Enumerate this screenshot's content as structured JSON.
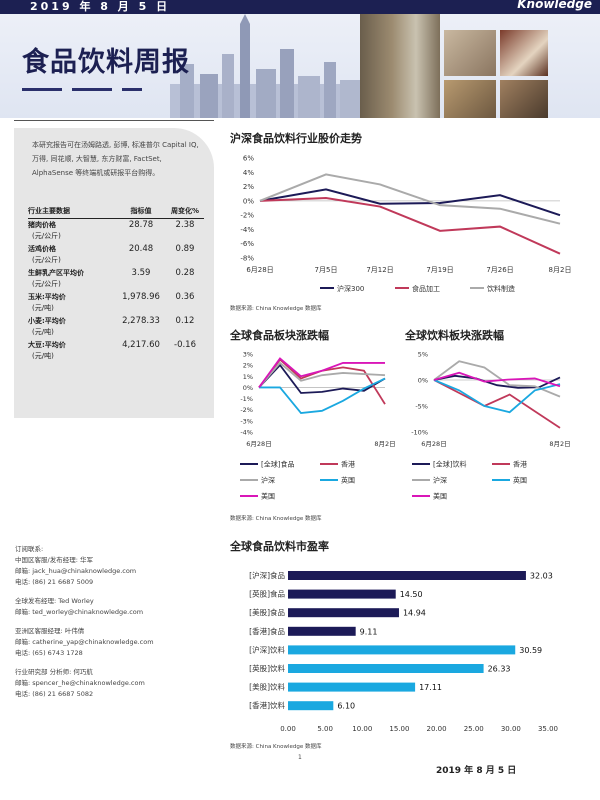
{
  "header": {
    "date": "2019 年 8 月 5 日",
    "brand": "Knowledge",
    "title": "食品饮料周报"
  },
  "sidebar": {
    "intro": "本研究报告可在汤姆路透, 彭博, 标准普尔 Capital IQ, 万得, 同花顺, 大智慧, 东方财富, FactSet, AlphaSense 等终端机或研报平台购得。",
    "table": {
      "headers": [
        "行业主要数据",
        "指标值",
        "周变化%"
      ],
      "rows": [
        {
          "name": "猪肉价格",
          "unit": "(元/公斤)",
          "value": "28.78",
          "change": "2.38"
        },
        {
          "name": "活鸡价格",
          "unit": "(元/公斤)",
          "value": "20.48",
          "change": "0.89"
        },
        {
          "name": "生鲜乳产区平均价",
          "unit": "(元/公斤)",
          "value": "3.59",
          "change": "0.28"
        },
        {
          "name": "玉米:平均价",
          "unit": "(元/吨)",
          "value": "1,978.96",
          "change": "0.36"
        },
        {
          "name": "小麦:平均价",
          "unit": "(元/吨)",
          "value": "2,278.33",
          "change": "0.12"
        },
        {
          "name": "大豆:平均价",
          "unit": "(元/吨)",
          "value": "4,217.60",
          "change": "-0.16"
        }
      ]
    }
  },
  "contacts": [
    {
      "title": "订阅联系:",
      "lines": [
        "中国区客服/发布经理: 华军",
        "邮箱: jack_hua@chinaknowledge.com",
        "电话: (86) 21 6687 5009"
      ]
    },
    {
      "title": "",
      "lines": [
        "全球发布经理: Ted Worley",
        "邮箱: ted_worley@chinaknowledge.com"
      ]
    },
    {
      "title": "",
      "lines": [
        "亚洲区客服经理: 叶伟倩",
        "邮箱: catherine_yap@chinaknowledge.com",
        "电话: (65) 6743 1728"
      ]
    },
    {
      "title": "",
      "lines": [
        "行业研究部 分析师: 何巧航",
        "邮箱: spencer_he@chinaknowledge.com",
        "电话: (86) 21 6687 5082"
      ]
    }
  ],
  "colors": {
    "navy": "#1c1a57",
    "crimson": "#c0395a",
    "gray": "#aaaaaa",
    "cyan": "#1aa8e0",
    "magenta": "#d916b8"
  },
  "chart_data": [
    {
      "type": "line",
      "title": "沪深食品饮料行业股价走势",
      "categories": [
        "6月28日",
        "7月5日",
        "7月12日",
        "7月19日",
        "7月26日",
        "8月2日"
      ],
      "x_positions": [
        0,
        1.1,
        2,
        3,
        4,
        5
      ],
      "ylim": [
        -8,
        6
      ],
      "yticks": [
        "6%",
        "4%",
        "2%",
        "0%",
        "-2%",
        "-4%",
        "-6%",
        "-8%"
      ],
      "series": [
        {
          "name": "沪深300",
          "color": "#1c1a57",
          "values": [
            0,
            1.6,
            -0.4,
            -0.3,
            0.8,
            -2
          ]
        },
        {
          "name": "食品加工",
          "color": "#c0395a",
          "values": [
            0,
            0.4,
            -0.8,
            -4.2,
            -3.6,
            -7.4
          ]
        },
        {
          "name": "饮料制造",
          "color": "#aaaaaa",
          "values": [
            0,
            3.7,
            2.3,
            -0.6,
            -1.1,
            -3.2
          ]
        }
      ],
      "source": "数据来源: China Knowledge 数据库"
    },
    {
      "type": "line",
      "title": "全球食品板块涨跌幅",
      "xlabels": [
        "6月28日",
        "8月2日"
      ],
      "ylim": [
        -4,
        3
      ],
      "yticks": [
        "3%",
        "2%",
        "1%",
        "0%",
        "-1%",
        "-2%",
        "-3%",
        "-4%"
      ],
      "series": [
        {
          "name": "[全球]食品",
          "color": "#1c1a57",
          "values": [
            0,
            2,
            -0.5,
            -0.4,
            -0.1,
            -0.3,
            0.8
          ]
        },
        {
          "name": "香港",
          "color": "#c0395a",
          "values": [
            0,
            2.5,
            0.8,
            1.5,
            1.8,
            1.5,
            -1.5
          ]
        },
        {
          "name": "沪深",
          "color": "#aaaaaa",
          "values": [
            0,
            2.2,
            0.6,
            1.1,
            1.3,
            1.2,
            1.1
          ]
        },
        {
          "name": "英国",
          "color": "#1aa8e0",
          "values": [
            0,
            0,
            -2.3,
            -2.1,
            -1.2,
            -0.1,
            0.8
          ]
        },
        {
          "name": "美国",
          "color": "#d916b8",
          "values": [
            0,
            2.6,
            1,
            1.5,
            2.2,
            2.2,
            2.2
          ]
        }
      ]
    },
    {
      "type": "line",
      "title": "全球饮料板块涨跌幅",
      "xlabels": [
        "6月28日",
        "8月2日"
      ],
      "ylim": [
        -10,
        5
      ],
      "yticks": [
        "5%",
        "0%",
        "-5%",
        "-10%"
      ],
      "series": [
        {
          "name": "[全球]饮料",
          "color": "#1c1a57",
          "values": [
            0,
            0.8,
            0.3,
            -1,
            -1.5,
            -1.4,
            0.5
          ]
        },
        {
          "name": "香港",
          "color": "#c0395a",
          "values": [
            0,
            -2.5,
            -5,
            -2.8,
            -6,
            -9.2
          ]
        },
        {
          "name": "沪深",
          "color": "#aaaaaa",
          "values": [
            0,
            3.6,
            2.4,
            -1,
            -1.2,
            -3.2
          ]
        },
        {
          "name": "英国",
          "color": "#1aa8e0",
          "values": [
            0,
            -2,
            -5,
            -6.2,
            -2,
            -0.8
          ]
        },
        {
          "name": "美国",
          "color": "#d916b8",
          "values": [
            0,
            1.4,
            -0.3,
            0.1,
            0.3,
            -1.2
          ]
        }
      ],
      "source": "数据来源: China Knowledge 数据库"
    },
    {
      "type": "bar",
      "orientation": "horizontal",
      "title": "全球食品饮料市盈率",
      "categories": [
        "[沪深]食品",
        "[英股]食品",
        "[美股]食品",
        "[香港]食品",
        "[沪深]饮料",
        "[英股]饮料",
        "[美股]饮料",
        "[香港]饮料"
      ],
      "values": [
        32.03,
        14.5,
        14.94,
        9.11,
        30.59,
        26.33,
        17.11,
        6.1
      ],
      "labels": [
        "32.03",
        "14.50",
        "14.94",
        "9.11",
        "30.59",
        "26.33",
        "17.11",
        "6.10"
      ],
      "bar_colors": [
        "#1c1a57",
        "#1c1a57",
        "#1c1a57",
        "#1c1a57",
        "#1aa8e0",
        "#1aa8e0",
        "#1aa8e0",
        "#1aa8e0"
      ],
      "xlim": [
        0,
        35
      ],
      "xticks": [
        "0.00",
        "5.00",
        "10.00",
        "15.00",
        "20.00",
        "25.00",
        "30.00",
        "35.00"
      ],
      "source": "数据来源: China Knowledge 数据库"
    }
  ],
  "footer": {
    "page": "1",
    "date": "2019 年 8 月 5 日"
  }
}
